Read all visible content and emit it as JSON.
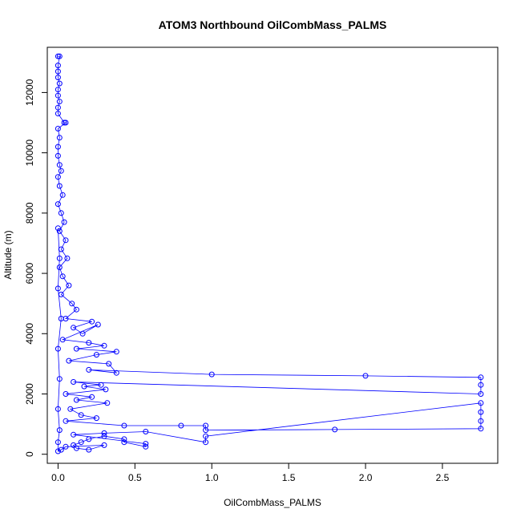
{
  "chart_data": {
    "type": "scatter",
    "title": "ATOM3 Northbound OilCombMass_PALMS",
    "xlabel": "OilCombMass_PALMS",
    "ylabel": "Altitude (m)",
    "xlim": [
      -0.07,
      2.86
    ],
    "ylim": [
      -300,
      13500
    ],
    "x_ticks": [
      0.0,
      0.5,
      1.0,
      1.5,
      2.0,
      2.5
    ],
    "x_tick_labels": [
      "0.0",
      "0.5",
      "1.0",
      "1.5",
      "2.0",
      "2.5"
    ],
    "y_ticks": [
      0,
      2000,
      4000,
      6000,
      8000,
      10000,
      12000
    ],
    "y_tick_labels": [
      "0",
      "2000",
      "4000",
      "6000",
      "8000",
      "10000",
      "12000"
    ],
    "grid": false,
    "colors": {
      "series": "#0000ff",
      "axes": "#000000",
      "background": "#ffffff"
    },
    "series": [
      {
        "style": "points-and-lines",
        "points": [
          [
            0.0,
            13200
          ],
          [
            0.01,
            13200
          ],
          [
            0.0,
            12900
          ],
          [
            0.0,
            12700
          ],
          [
            0.0,
            12500
          ],
          [
            0.01,
            12300
          ],
          [
            0.0,
            12100
          ],
          [
            0.0,
            11900
          ],
          [
            0.01,
            11700
          ],
          [
            0.0,
            11500
          ],
          [
            0.0,
            11300
          ],
          [
            0.04,
            11000
          ],
          [
            0.05,
            11000
          ],
          [
            0.0,
            10800
          ],
          [
            0.01,
            10500
          ],
          [
            0.0,
            10200
          ],
          [
            0.0,
            9900
          ],
          [
            0.01,
            9600
          ],
          [
            0.02,
            9400
          ],
          [
            0.0,
            9200
          ],
          [
            0.01,
            8900
          ],
          [
            0.03,
            8600
          ],
          [
            0.0,
            8300
          ],
          [
            0.02,
            8000
          ],
          [
            0.04,
            7700
          ],
          [
            0.01,
            7400
          ],
          [
            0.05,
            7100
          ],
          [
            0.02,
            6800
          ],
          [
            0.06,
            6500
          ],
          [
            0.01,
            6200
          ],
          [
            0.03,
            5900
          ],
          [
            0.07,
            5600
          ],
          [
            0.02,
            5300
          ],
          [
            0.09,
            5000
          ],
          [
            0.12,
            4800
          ],
          [
            0.05,
            4500
          ],
          [
            0.22,
            4400
          ],
          [
            0.1,
            4200
          ],
          [
            0.16,
            4000
          ],
          [
            0.26,
            4300
          ],
          [
            0.03,
            3800
          ],
          [
            0.2,
            3700
          ],
          [
            0.3,
            3600
          ],
          [
            0.12,
            3500
          ],
          [
            0.38,
            3400
          ],
          [
            0.25,
            3300
          ],
          [
            0.07,
            3100
          ],
          [
            0.33,
            3000
          ],
          [
            0.38,
            2700
          ],
          [
            0.2,
            2800
          ],
          [
            1.0,
            2650
          ],
          [
            2.0,
            2600
          ],
          [
            2.75,
            2550
          ],
          [
            2.75,
            2300
          ],
          [
            2.75,
            2000
          ],
          [
            0.1,
            2400
          ],
          [
            0.28,
            2300
          ],
          [
            0.17,
            2250
          ],
          [
            0.31,
            2150
          ],
          [
            0.05,
            2000
          ],
          [
            0.22,
            1900
          ],
          [
            0.12,
            1800
          ],
          [
            0.32,
            1700
          ],
          [
            0.08,
            1500
          ],
          [
            0.15,
            1300
          ],
          [
            0.25,
            1200
          ],
          [
            0.05,
            1100
          ],
          [
            0.43,
            950
          ],
          [
            0.8,
            950
          ],
          [
            0.96,
            950
          ],
          [
            0.96,
            800
          ],
          [
            1.8,
            820
          ],
          [
            2.75,
            850
          ],
          [
            2.75,
            1100
          ],
          [
            2.75,
            1400
          ],
          [
            2.75,
            1700
          ],
          [
            0.96,
            600
          ],
          [
            0.96,
            400
          ],
          [
            0.57,
            750
          ],
          [
            0.3,
            700
          ],
          [
            0.1,
            650
          ],
          [
            0.57,
            350
          ],
          [
            0.57,
            250
          ],
          [
            0.43,
            400
          ],
          [
            0.43,
            500
          ],
          [
            0.3,
            600
          ],
          [
            0.2,
            500
          ],
          [
            0.15,
            400
          ],
          [
            0.1,
            300
          ],
          [
            0.12,
            200
          ],
          [
            0.2,
            150
          ],
          [
            0.3,
            300
          ],
          [
            0.05,
            250
          ],
          [
            0.02,
            150
          ],
          [
            0.0,
            100
          ],
          [
            0.0,
            400
          ],
          [
            0.01,
            800
          ],
          [
            0.0,
            1500
          ],
          [
            0.01,
            2500
          ],
          [
            0.0,
            3500
          ],
          [
            0.02,
            4500
          ],
          [
            0.0,
            5500
          ],
          [
            0.01,
            6500
          ],
          [
            0.0,
            7500
          ]
        ]
      }
    ]
  }
}
